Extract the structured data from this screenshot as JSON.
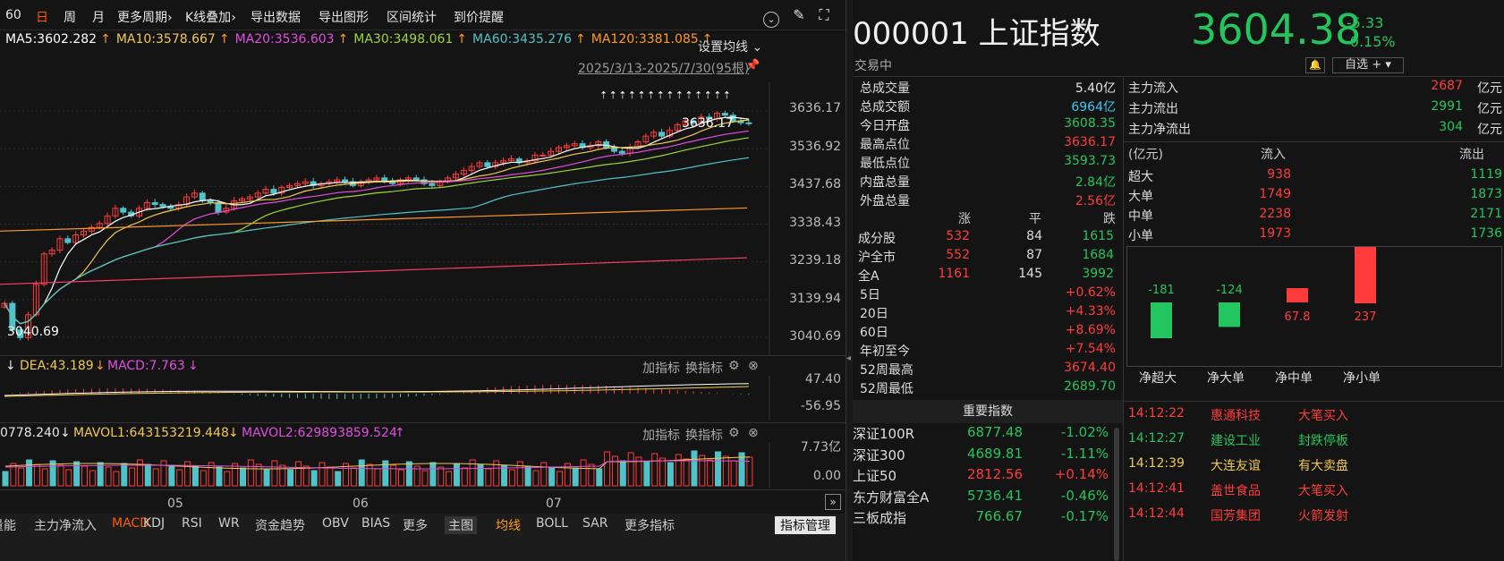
{
  "toolbar": {
    "items": [
      "60",
      "日",
      "周",
      "月",
      "更多周期",
      "K线叠加",
      "导出数据",
      "导出图形",
      "区间统计",
      "到价提醒"
    ],
    "active_index": 1,
    "dropdown_indices": [
      4,
      5
    ]
  },
  "ma_row": {
    "items": [
      {
        "text": "MA5:3602.282",
        "arrow": "↑",
        "color": "#ffffff"
      },
      {
        "text": "MA10:3578.667",
        "arrow": "↑",
        "color": "#f2c94c"
      },
      {
        "text": "MA20:3536.603",
        "arrow": "↑",
        "color": "#e04ee0"
      },
      {
        "text": "MA30:3498.061",
        "arrow": "↑",
        "color": "#9fd633"
      },
      {
        "text": "MA60:3435.276",
        "arrow": "↑",
        "color": "#4fc3c8"
      },
      {
        "text": "MA120:3381.085",
        "arrow": "↑",
        "color": "#ff9a1f"
      }
    ],
    "settings_label": "设置均线"
  },
  "range_label": "2025/3/13-2025/7/30(95根)",
  "price_axis": [
    "3636.17",
    "3536.92",
    "3437.68",
    "3338.43",
    "3239.18",
    "3139.94",
    "3040.69"
  ],
  "high_marker": "3636.17",
  "low_marker": "3040.69",
  "macd_row": {
    "dea": "DEA:43.189",
    "dea_arrow": "↓",
    "macd": "MACD:7.763",
    "macd_arrow": "↓",
    "lead_arrow": "↓",
    "add": "加指标",
    "switch": "换指标"
  },
  "macd_axis": [
    "47.40",
    "-56.95"
  ],
  "vol_row": {
    "prefix": "0778.240",
    "arrow0": "↓",
    "mavol1": "MAVOL1:643153219.448",
    "arrow1": "↓",
    "mavol2": "MAVOL2:629893859.524",
    "arrow2": "↑",
    "add": "加指标",
    "switch": "换指标"
  },
  "vol_axis": [
    "7.73亿",
    "0.00"
  ],
  "months": [
    "05",
    "06",
    "07"
  ],
  "bottom_tabs": [
    "量能",
    "主力净流入",
    "MACD",
    "KDJ",
    "RSI",
    "WR",
    "资金趋势",
    "OBV",
    "BIAS",
    "更多",
    "主图",
    "均线",
    "BOLL",
    "SAR",
    "更多指标",
    "指标管理"
  ],
  "quote": {
    "code": "000001",
    "name": "上证指数",
    "price": "3604.38",
    "change": "-5.33",
    "change_pct": "-0.15%",
    "status": "交易中",
    "watch_btn": "自选 +"
  },
  "stats": [
    {
      "label": "总成交量",
      "value": "5.40亿",
      "color": "#e6e6e6"
    },
    {
      "label": "总成交额",
      "value": "6964亿",
      "color": "#38c8f0"
    },
    {
      "label": "今日开盘",
      "value": "3608.35",
      "color": "#22c55e"
    },
    {
      "label": "最高点位",
      "value": "3636.17",
      "color": "#ff3b3b"
    },
    {
      "label": "最低点位",
      "value": "3593.73",
      "color": "#22c55e"
    },
    {
      "label": "内盘总量",
      "value": "2.84亿",
      "color": "#22c55e"
    },
    {
      "label": "外盘总量",
      "value": "2.56亿",
      "color": "#ff3b3b"
    }
  ],
  "breadth_header": [
    "涨",
    "平",
    "跌"
  ],
  "breadth": [
    {
      "label": "成分股",
      "up": "532",
      "flat": "84",
      "down": "1615"
    },
    {
      "label": "沪全市",
      "up": "552",
      "flat": "87",
      "down": "1684"
    },
    {
      "label": "全A",
      "up": "1161",
      "flat": "145",
      "down": "3992"
    }
  ],
  "perf": [
    {
      "label": "5日",
      "value": "+0.62%",
      "color": "#ff3b3b"
    },
    {
      "label": "20日",
      "value": "+4.33%",
      "color": "#ff3b3b"
    },
    {
      "label": "60日",
      "value": "+8.69%",
      "color": "#ff3b3b"
    },
    {
      "label": "年初至今",
      "value": "+7.54%",
      "color": "#ff3b3b"
    },
    {
      "label": "52周最高",
      "value": "3674.40",
      "color": "#ff3b3b"
    },
    {
      "label": "52周最低",
      "value": "2689.70",
      "color": "#22c55e"
    }
  ],
  "flow_summary": [
    {
      "label": "主力流入",
      "value": "2687",
      "unit": "亿元",
      "color": "#ff3b3b"
    },
    {
      "label": "主力流出",
      "value": "2991",
      "unit": "亿元",
      "color": "#22c55e"
    },
    {
      "label": "主力净流出",
      "value": "304",
      "unit": "亿元",
      "color": "#22c55e"
    }
  ],
  "flow_header": [
    "(亿元)",
    "流入",
    "流出"
  ],
  "flow_rows": [
    {
      "label": "超大",
      "in": "938",
      "out": "1119"
    },
    {
      "label": "大单",
      "in": "1749",
      "out": "1873"
    },
    {
      "label": "中单",
      "in": "2238",
      "out": "2171"
    },
    {
      "label": "小单",
      "in": "1973",
      "out": "1736"
    }
  ],
  "net_bars": [
    {
      "label": "净超大",
      "value": -181,
      "text": "-181"
    },
    {
      "label": "净大单",
      "value": -124,
      "text": "-124"
    },
    {
      "label": "净中单",
      "value": 67.8,
      "text": "67.8"
    },
    {
      "label": "净小单",
      "value": 237,
      "text": "237"
    }
  ],
  "indices_title": "重要指数",
  "indices": [
    {
      "name": "深证100R",
      "value": "6877.48",
      "pct": "-1.02%",
      "dir": "down"
    },
    {
      "name": "深证300",
      "value": "4689.81",
      "pct": "-1.11%",
      "dir": "down"
    },
    {
      "name": "上证50",
      "value": "2812.56",
      "pct": "+0.14%",
      "dir": "up"
    },
    {
      "name": "东方财富全A",
      "value": "5736.41",
      "pct": "-0.46%",
      "dir": "down"
    },
    {
      "name": "三板成指",
      "value": "766.67",
      "pct": "-0.17%",
      "dir": "down"
    }
  ],
  "ticks": [
    {
      "time": "14:12:22",
      "name": "惠通科技",
      "event": "大笔买入",
      "time_color": "#ff3b3b",
      "name_color": "#ff3b3b",
      "event_color": "#ff3b3b"
    },
    {
      "time": "14:12:27",
      "name": "建设工业",
      "event": "封跌停板",
      "time_color": "#22c55e",
      "name_color": "#22c55e",
      "event_color": "#22c55e"
    },
    {
      "time": "14:12:39",
      "name": "大连友谊",
      "event": "有大卖盘",
      "time_color": "#f2c94c",
      "name_color": "#f2c94c",
      "event_color": "#f2c94c"
    },
    {
      "time": "14:12:41",
      "name": "盖世食品",
      "event": "大笔买入",
      "time_color": "#ff3b3b",
      "name_color": "#ff3b3b",
      "event_color": "#ff3b3b"
    },
    {
      "time": "14:12:44",
      "name": "国芳集团",
      "event": "火箭发射",
      "time_color": "#ff3b3b",
      "name_color": "#ff3b3b",
      "event_color": "#ff3b3b"
    }
  ],
  "colors": {
    "up": "#ff3b3b",
    "down": "#22c55e",
    "price": "#22c55e"
  }
}
